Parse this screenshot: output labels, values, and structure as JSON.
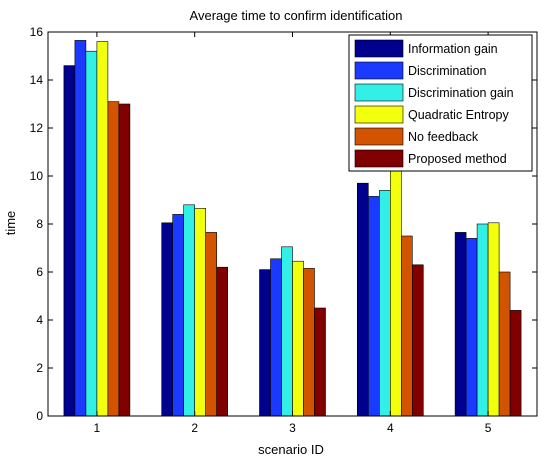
{
  "chart_data": {
    "type": "bar",
    "title": "Average time to confirm identification",
    "xlabel": "scenario ID",
    "ylabel": "time",
    "categories": [
      "1",
      "2",
      "3",
      "4",
      "5"
    ],
    "ylim": [
      0,
      16
    ],
    "yticks": [
      0,
      2,
      4,
      6,
      8,
      10,
      12,
      14,
      16
    ],
    "grid": false,
    "legend_position": "top-right",
    "series": [
      {
        "name": "Information gain",
        "color": "#00008f",
        "values": [
          14.6,
          8.05,
          6.1,
          9.7,
          7.65
        ]
      },
      {
        "name": "Discrimination",
        "color": "#1a3bff",
        "values": [
          15.65,
          8.4,
          6.55,
          9.15,
          7.4
        ]
      },
      {
        "name": "Discrimination gain",
        "color": "#33f0e6",
        "values": [
          15.2,
          8.8,
          7.05,
          9.4,
          8.0
        ]
      },
      {
        "name": "Quadratic Entropy",
        "color": "#f2ff0d",
        "values": [
          15.6,
          8.65,
          6.45,
          10.2,
          8.05
        ]
      },
      {
        "name": "No feedback",
        "color": "#d35400",
        "values": [
          13.1,
          7.65,
          6.15,
          7.5,
          6.0
        ]
      },
      {
        "name": "Proposed method",
        "color": "#800000",
        "values": [
          13.0,
          6.2,
          4.5,
          6.3,
          4.4
        ]
      }
    ]
  }
}
